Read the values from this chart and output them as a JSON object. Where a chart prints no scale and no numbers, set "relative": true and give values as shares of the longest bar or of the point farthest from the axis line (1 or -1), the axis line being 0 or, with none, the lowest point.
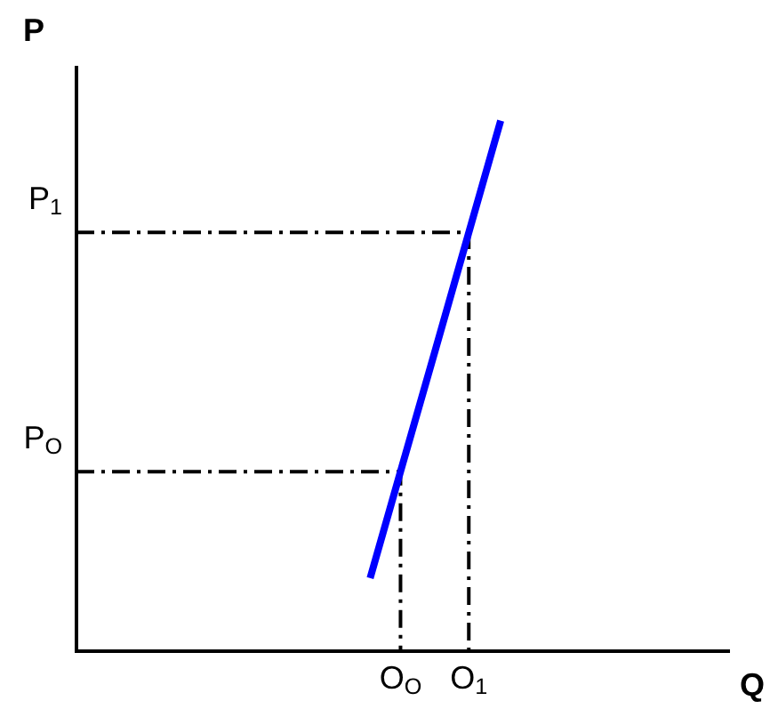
{
  "chart_data": {
    "type": "line",
    "relative": true,
    "xlabel": "Q",
    "ylabel": "P",
    "legend": false,
    "grid": false,
    "categories": [
      null,
      null,
      null,
      null,
      null,
      null,
      null,
      null,
      null,
      null,
      null,
      null,
      null,
      null,
      null,
      null,
      null,
      null,
      null,
      null,
      null
    ],
    "series": [
      {
        "color": "#0000ff",
        "values": [
          null,
          null,
          null,
          null,
          null,
          null,
          null,
          null,
          null,
          0.137,
          0.353,
          0.568,
          0.784,
          1,
          null,
          null,
          null,
          null,
          null,
          null,
          null
        ]
      }
    ],
    "ref_lines": [
      {
        "axis": "y",
        "value": 0.338,
        "label": "P$_{O}$",
        "color": "#000000",
        "line_style": "dashed"
      },
      {
        "axis": "y",
        "value": 0.789,
        "label": "P$_{1}$",
        "color": "#000000",
        "line_style": "dashed"
      }
    ],
    "annotations": [
      "O$_{O}$",
      "O$_{1}$"
    ]
  }
}
